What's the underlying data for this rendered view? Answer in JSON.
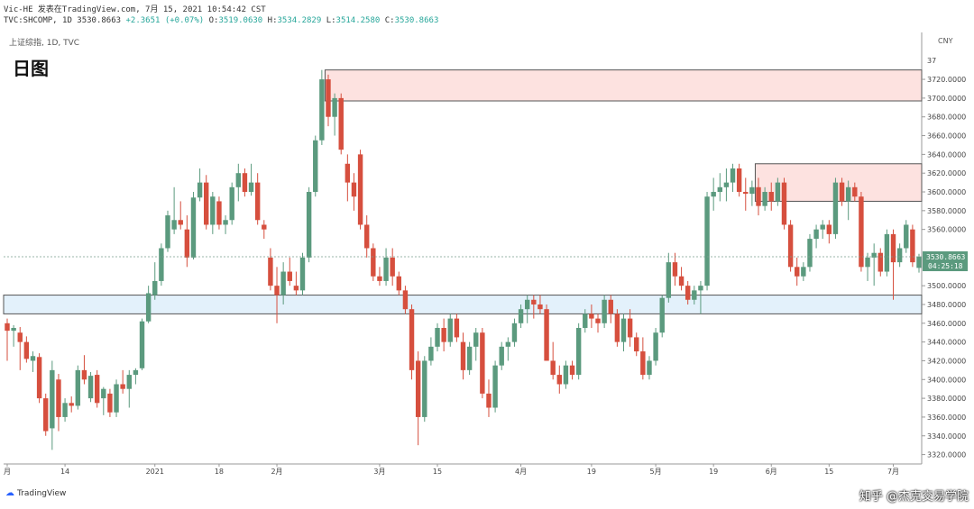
{
  "header": {
    "line1_prefix": "Vic-HE 发表在TradingView.com, 7月 15, 2021 10:54:42 CST",
    "line2_symbol": "TVC:SHCOMP, 1D",
    "line2_price": "3530.8663",
    "line2_change": "+2.3651 (+0.07%)",
    "line2_o_label": "O:",
    "line2_o_val": "3519.0630",
    "line2_h_label": "H:",
    "line2_h_val": "3534.2829",
    "line2_l_label": "L:",
    "line2_l_val": "3514.2580",
    "line2_c_label": "C:",
    "line2_c_val": "3530.8663"
  },
  "ticker_label": "上证综指, 1D, TVC",
  "big_title": "日图",
  "currency": "CNY",
  "branding": {
    "logo_text": "TradingView"
  },
  "watermark_text": "知乎 @杰克交易学院",
  "colors": {
    "up": "#5b9a7e",
    "down": "#d64f3e",
    "resist_zone": "#fde2e0",
    "support_zone": "#e3f1fb"
  },
  "chart_data": {
    "type": "candlestick",
    "y_range": [
      3310,
      3770
    ],
    "y_ticks": [
      3320,
      3340,
      3360,
      3380,
      3400,
      3420,
      3440,
      3460,
      3480,
      3500,
      3520,
      3540,
      3560,
      3580,
      3600,
      3620,
      3640,
      3660,
      3680,
      3700,
      3720
    ],
    "y_tick_labels": [
      "3320.0000",
      "3340.0000",
      "3360.0000",
      "3380.0000",
      "3400.0000",
      "3420.0000",
      "3440.0000",
      "3460.0000",
      "3480.0000",
      "3500.0000",
      "3520.0000",
      "3540.0000",
      "3560.0000",
      "3580.0000",
      "3600.0000",
      "3620.0000",
      "3640.0000",
      "3660.0000",
      "3680.0000",
      "3700.0000",
      "3720.0000"
    ],
    "top_tick_label": "37",
    "x_labels": [
      {
        "label": "月",
        "i": 0
      },
      {
        "label": "14",
        "i": 9
      },
      {
        "label": "2021",
        "i": 23
      },
      {
        "label": "18",
        "i": 33
      },
      {
        "label": "2月",
        "i": 42
      },
      {
        "label": "3月",
        "i": 58
      },
      {
        "label": "15",
        "i": 67
      },
      {
        "label": "4月",
        "i": 80
      },
      {
        "label": "19",
        "i": 91
      },
      {
        "label": "5月",
        "i": 101
      },
      {
        "label": "19",
        "i": 110
      },
      {
        "label": "6月",
        "i": 119
      },
      {
        "label": "15",
        "i": 128
      },
      {
        "label": "7月",
        "i": 138
      }
    ],
    "current_price": {
      "value": 3530.8663,
      "label": "3530.8663",
      "time": "04:25:18"
    },
    "zones": [
      {
        "name": "resistance-zone-upper",
        "from": 3697,
        "to": 3730,
        "start_index": 50,
        "fill": "#fde2e0",
        "border": "#555"
      },
      {
        "name": "resistance-zone-lower",
        "from": 3590,
        "to": 3630,
        "start_index": 117,
        "fill": "#fde2e0",
        "border": "#555"
      },
      {
        "name": "support-zone",
        "from": 3470,
        "to": 3490,
        "start_index": 0,
        "fill": "#e3f1fb",
        "border": "#555"
      }
    ],
    "candles": [
      {
        "o": 3460,
        "h": 3465,
        "l": 3420,
        "c": 3452
      },
      {
        "o": 3452,
        "h": 3458,
        "l": 3435,
        "c": 3455
      },
      {
        "o": 3450,
        "h": 3456,
        "l": 3410,
        "c": 3440
      },
      {
        "o": 3440,
        "h": 3446,
        "l": 3418,
        "c": 3422
      },
      {
        "o": 3420,
        "h": 3430,
        "l": 3408,
        "c": 3425
      },
      {
        "o": 3424,
        "h": 3428,
        "l": 3375,
        "c": 3380
      },
      {
        "o": 3380,
        "h": 3385,
        "l": 3340,
        "c": 3345
      },
      {
        "o": 3348,
        "h": 3420,
        "l": 3325,
        "c": 3410
      },
      {
        "o": 3400,
        "h": 3406,
        "l": 3345,
        "c": 3360
      },
      {
        "o": 3360,
        "h": 3380,
        "l": 3355,
        "c": 3375
      },
      {
        "o": 3375,
        "h": 3382,
        "l": 3365,
        "c": 3372
      },
      {
        "o": 3372,
        "h": 3415,
        "l": 3368,
        "c": 3410
      },
      {
        "o": 3410,
        "h": 3426,
        "l": 3395,
        "c": 3400
      },
      {
        "o": 3380,
        "h": 3408,
        "l": 3376,
        "c": 3404
      },
      {
        "o": 3405,
        "h": 3410,
        "l": 3370,
        "c": 3375
      },
      {
        "o": 3380,
        "h": 3392,
        "l": 3362,
        "c": 3390
      },
      {
        "o": 3385,
        "h": 3390,
        "l": 3360,
        "c": 3365
      },
      {
        "o": 3365,
        "h": 3400,
        "l": 3360,
        "c": 3395
      },
      {
        "o": 3395,
        "h": 3410,
        "l": 3385,
        "c": 3390
      },
      {
        "o": 3390,
        "h": 3410,
        "l": 3370,
        "c": 3405
      },
      {
        "o": 3405,
        "h": 3412,
        "l": 3395,
        "c": 3410
      },
      {
        "o": 3412,
        "h": 3465,
        "l": 3410,
        "c": 3462
      },
      {
        "o": 3462,
        "h": 3500,
        "l": 3460,
        "c": 3492
      },
      {
        "o": 3490,
        "h": 3525,
        "l": 3485,
        "c": 3505
      },
      {
        "o": 3505,
        "h": 3545,
        "l": 3500,
        "c": 3540
      },
      {
        "o": 3540,
        "h": 3580,
        "l": 3536,
        "c": 3575
      },
      {
        "o": 3560,
        "h": 3605,
        "l": 3555,
        "c": 3570
      },
      {
        "o": 3570,
        "h": 3590,
        "l": 3560,
        "c": 3565
      },
      {
        "o": 3560,
        "h": 3575,
        "l": 3520,
        "c": 3530
      },
      {
        "o": 3530,
        "h": 3600,
        "l": 3528,
        "c": 3594
      },
      {
        "o": 3594,
        "h": 3625,
        "l": 3590,
        "c": 3610
      },
      {
        "o": 3610,
        "h": 3618,
        "l": 3560,
        "c": 3565
      },
      {
        "o": 3565,
        "h": 3600,
        "l": 3555,
        "c": 3595
      },
      {
        "o": 3590,
        "h": 3595,
        "l": 3560,
        "c": 3565
      },
      {
        "o": 3565,
        "h": 3575,
        "l": 3555,
        "c": 3570
      },
      {
        "o": 3570,
        "h": 3610,
        "l": 3565,
        "c": 3605
      },
      {
        "o": 3605,
        "h": 3630,
        "l": 3590,
        "c": 3620
      },
      {
        "o": 3620,
        "h": 3625,
        "l": 3595,
        "c": 3600
      },
      {
        "o": 3600,
        "h": 3630,
        "l": 3596,
        "c": 3610
      },
      {
        "o": 3610,
        "h": 3620,
        "l": 3565,
        "c": 3570
      },
      {
        "o": 3565,
        "h": 3570,
        "l": 3550,
        "c": 3560
      },
      {
        "o": 3530,
        "h": 3540,
        "l": 3495,
        "c": 3500
      },
      {
        "o": 3500,
        "h": 3520,
        "l": 3460,
        "c": 3490
      },
      {
        "o": 3490,
        "h": 3525,
        "l": 3480,
        "c": 3515
      },
      {
        "o": 3515,
        "h": 3530,
        "l": 3500,
        "c": 3505
      },
      {
        "o": 3500,
        "h": 3515,
        "l": 3490,
        "c": 3495
      },
      {
        "o": 3495,
        "h": 3535,
        "l": 3490,
        "c": 3530
      },
      {
        "o": 3530,
        "h": 3605,
        "l": 3525,
        "c": 3600
      },
      {
        "o": 3600,
        "h": 3660,
        "l": 3595,
        "c": 3655
      },
      {
        "o": 3655,
        "h": 3730,
        "l": 3650,
        "c": 3720
      },
      {
        "o": 3720,
        "h": 3725,
        "l": 3670,
        "c": 3680
      },
      {
        "o": 3680,
        "h": 3705,
        "l": 3660,
        "c": 3700
      },
      {
        "o": 3700,
        "h": 3705,
        "l": 3640,
        "c": 3645
      },
      {
        "o": 3630,
        "h": 3640,
        "l": 3590,
        "c": 3610
      },
      {
        "o": 3610,
        "h": 3620,
        "l": 3580,
        "c": 3595
      },
      {
        "o": 3640,
        "h": 3645,
        "l": 3560,
        "c": 3565
      },
      {
        "o": 3565,
        "h": 3575,
        "l": 3530,
        "c": 3540
      },
      {
        "o": 3540,
        "h": 3545,
        "l": 3505,
        "c": 3510
      },
      {
        "o": 3510,
        "h": 3520,
        "l": 3500,
        "c": 3505
      },
      {
        "o": 3505,
        "h": 3540,
        "l": 3500,
        "c": 3530
      },
      {
        "o": 3530,
        "h": 3540,
        "l": 3500,
        "c": 3510
      },
      {
        "o": 3510,
        "h": 3515,
        "l": 3490,
        "c": 3495
      },
      {
        "o": 3495,
        "h": 3500,
        "l": 3470,
        "c": 3475
      },
      {
        "o": 3475,
        "h": 3480,
        "l": 3400,
        "c": 3410
      },
      {
        "o": 3420,
        "h": 3430,
        "l": 3330,
        "c": 3360
      },
      {
        "o": 3360,
        "h": 3425,
        "l": 3355,
        "c": 3420
      },
      {
        "o": 3420,
        "h": 3445,
        "l": 3415,
        "c": 3435
      },
      {
        "o": 3435,
        "h": 3460,
        "l": 3430,
        "c": 3455
      },
      {
        "o": 3455,
        "h": 3465,
        "l": 3430,
        "c": 3440
      },
      {
        "o": 3440,
        "h": 3470,
        "l": 3435,
        "c": 3465
      },
      {
        "o": 3465,
        "h": 3470,
        "l": 3440,
        "c": 3445
      },
      {
        "o": 3440,
        "h": 3450,
        "l": 3400,
        "c": 3410
      },
      {
        "o": 3410,
        "h": 3440,
        "l": 3405,
        "c": 3435
      },
      {
        "o": 3435,
        "h": 3455,
        "l": 3420,
        "c": 3450
      },
      {
        "o": 3450,
        "h": 3455,
        "l": 3380,
        "c": 3385
      },
      {
        "o": 3385,
        "h": 3400,
        "l": 3360,
        "c": 3370
      },
      {
        "o": 3370,
        "h": 3420,
        "l": 3365,
        "c": 3415
      },
      {
        "o": 3415,
        "h": 3440,
        "l": 3410,
        "c": 3435
      },
      {
        "o": 3435,
        "h": 3445,
        "l": 3420,
        "c": 3440
      },
      {
        "o": 3440,
        "h": 3465,
        "l": 3435,
        "c": 3460
      },
      {
        "o": 3460,
        "h": 3480,
        "l": 3455,
        "c": 3475
      },
      {
        "o": 3475,
        "h": 3490,
        "l": 3460,
        "c": 3485
      },
      {
        "o": 3485,
        "h": 3490,
        "l": 3465,
        "c": 3480
      },
      {
        "o": 3480,
        "h": 3490,
        "l": 3470,
        "c": 3475
      },
      {
        "o": 3475,
        "h": 3480,
        "l": 3420,
        "c": 3420
      },
      {
        "o": 3420,
        "h": 3440,
        "l": 3400,
        "c": 3405
      },
      {
        "o": 3405,
        "h": 3415,
        "l": 3385,
        "c": 3395
      },
      {
        "o": 3395,
        "h": 3420,
        "l": 3390,
        "c": 3415
      },
      {
        "o": 3415,
        "h": 3420,
        "l": 3400,
        "c": 3405
      },
      {
        "o": 3405,
        "h": 3460,
        "l": 3400,
        "c": 3455
      },
      {
        "o": 3455,
        "h": 3475,
        "l": 3450,
        "c": 3470
      },
      {
        "o": 3470,
        "h": 3480,
        "l": 3455,
        "c": 3465
      },
      {
        "o": 3465,
        "h": 3470,
        "l": 3450,
        "c": 3460
      },
      {
        "o": 3460,
        "h": 3490,
        "l": 3455,
        "c": 3485
      },
      {
        "o": 3485,
        "h": 3490,
        "l": 3460,
        "c": 3470
      },
      {
        "o": 3470,
        "h": 3475,
        "l": 3435,
        "c": 3440
      },
      {
        "o": 3440,
        "h": 3470,
        "l": 3430,
        "c": 3465
      },
      {
        "o": 3465,
        "h": 3475,
        "l": 3435,
        "c": 3445
      },
      {
        "o": 3445,
        "h": 3450,
        "l": 3425,
        "c": 3430
      },
      {
        "o": 3430,
        "h": 3445,
        "l": 3400,
        "c": 3405
      },
      {
        "o": 3405,
        "h": 3425,
        "l": 3400,
        "c": 3420
      },
      {
        "o": 3420,
        "h": 3455,
        "l": 3415,
        "c": 3450
      },
      {
        "o": 3450,
        "h": 3490,
        "l": 3445,
        "c": 3487
      },
      {
        "o": 3487,
        "h": 3535,
        "l": 3482,
        "c": 3525
      },
      {
        "o": 3525,
        "h": 3535,
        "l": 3500,
        "c": 3510
      },
      {
        "o": 3510,
        "h": 3520,
        "l": 3495,
        "c": 3500
      },
      {
        "o": 3500,
        "h": 3505,
        "l": 3480,
        "c": 3485
      },
      {
        "o": 3485,
        "h": 3500,
        "l": 3480,
        "c": 3495
      },
      {
        "o": 3495,
        "h": 3505,
        "l": 3470,
        "c": 3500
      },
      {
        "o": 3500,
        "h": 3600,
        "l": 3495,
        "c": 3595
      },
      {
        "o": 3595,
        "h": 3615,
        "l": 3580,
        "c": 3600
      },
      {
        "o": 3600,
        "h": 3620,
        "l": 3590,
        "c": 3605
      },
      {
        "o": 3605,
        "h": 3625,
        "l": 3590,
        "c": 3610
      },
      {
        "o": 3610,
        "h": 3630,
        "l": 3600,
        "c": 3625
      },
      {
        "o": 3625,
        "h": 3630,
        "l": 3595,
        "c": 3600
      },
      {
        "o": 3600,
        "h": 3615,
        "l": 3580,
        "c": 3598
      },
      {
        "o": 3598,
        "h": 3612,
        "l": 3585,
        "c": 3605
      },
      {
        "o": 3605,
        "h": 3615,
        "l": 3575,
        "c": 3585
      },
      {
        "o": 3585,
        "h": 3605,
        "l": 3580,
        "c": 3600
      },
      {
        "o": 3600,
        "h": 3610,
        "l": 3580,
        "c": 3590
      },
      {
        "o": 3590,
        "h": 3615,
        "l": 3585,
        "c": 3610
      },
      {
        "o": 3610,
        "h": 3615,
        "l": 3560,
        "c": 3565
      },
      {
        "o": 3565,
        "h": 3570,
        "l": 3515,
        "c": 3520
      },
      {
        "o": 3520,
        "h": 3530,
        "l": 3500,
        "c": 3510
      },
      {
        "o": 3510,
        "h": 3525,
        "l": 3505,
        "c": 3520
      },
      {
        "o": 3520,
        "h": 3555,
        "l": 3515,
        "c": 3550
      },
      {
        "o": 3550,
        "h": 3565,
        "l": 3540,
        "c": 3560
      },
      {
        "o": 3560,
        "h": 3570,
        "l": 3550,
        "c": 3565
      },
      {
        "o": 3565,
        "h": 3570,
        "l": 3545,
        "c": 3555
      },
      {
        "o": 3555,
        "h": 3615,
        "l": 3550,
        "c": 3610
      },
      {
        "o": 3610,
        "h": 3615,
        "l": 3585,
        "c": 3590
      },
      {
        "o": 3590,
        "h": 3612,
        "l": 3570,
        "c": 3605
      },
      {
        "o": 3605,
        "h": 3610,
        "l": 3590,
        "c": 3595
      },
      {
        "o": 3595,
        "h": 3600,
        "l": 3515,
        "c": 3520
      },
      {
        "o": 3520,
        "h": 3535,
        "l": 3505,
        "c": 3530
      },
      {
        "o": 3530,
        "h": 3545,
        "l": 3500,
        "c": 3535
      },
      {
        "o": 3535,
        "h": 3540,
        "l": 3510,
        "c": 3515
      },
      {
        "o": 3515,
        "h": 3560,
        "l": 3510,
        "c": 3555
      },
      {
        "o": 3555,
        "h": 3560,
        "l": 3485,
        "c": 3525
      },
      {
        "o": 3525,
        "h": 3545,
        "l": 3520,
        "c": 3540
      },
      {
        "o": 3540,
        "h": 3570,
        "l": 3535,
        "c": 3565
      },
      {
        "o": 3560,
        "h": 3565,
        "l": 3520,
        "c": 3525
      },
      {
        "o": 3519,
        "h": 3534,
        "l": 3514,
        "c": 3531
      }
    ]
  }
}
